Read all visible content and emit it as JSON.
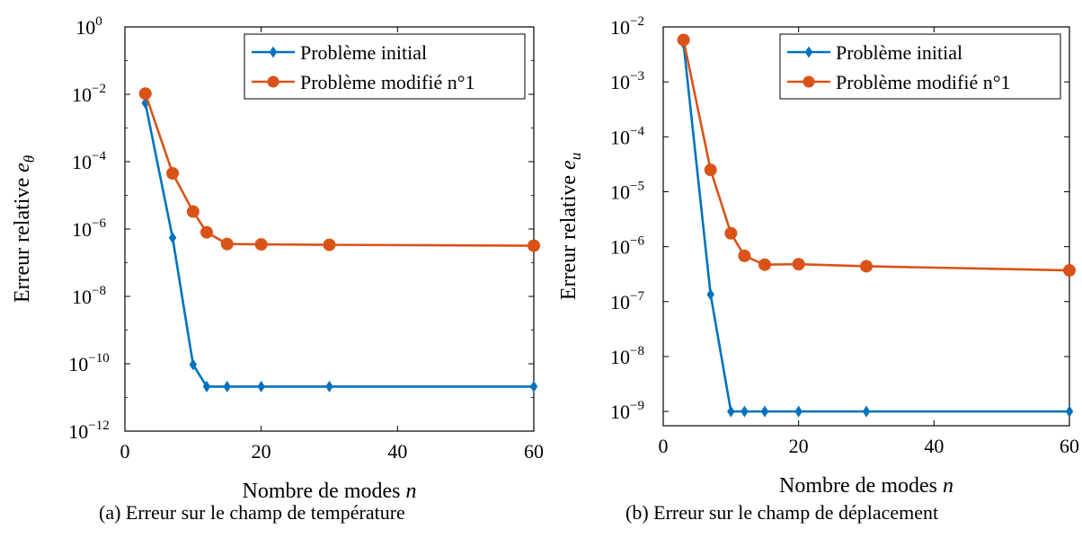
{
  "colors": {
    "blue": "#0072BD",
    "orange": "#D95319"
  },
  "panels": [
    {
      "caption": "(a) Erreur sur le champ de température",
      "chart_data": {
        "type": "line",
        "xlabel": "Nombre de modes n",
        "ylabel": "Erreur relative e_θ",
        "xlim": [
          0,
          60
        ],
        "ylim": [
          1e-12,
          1
        ],
        "yscale": "log",
        "xticks": [
          0,
          20,
          40,
          60
        ],
        "yticks": [
          {
            "base": "10",
            "exp": "0"
          },
          {
            "base": "10",
            "exp": "−2"
          },
          {
            "base": "10",
            "exp": "−4"
          },
          {
            "base": "10",
            "exp": "−6"
          },
          {
            "base": "10",
            "exp": "−8"
          },
          {
            "base": "10",
            "exp": "−10"
          },
          {
            "base": "10",
            "exp": "−12"
          }
        ],
        "legend_position": "top-right",
        "series": [
          {
            "name": "Problème initial",
            "marker": "diamond",
            "color": "#0072BD",
            "x": [
              3,
              7,
              10,
              12,
              15,
              20,
              30,
              60
            ],
            "y": [
              0.0055,
              5.5e-07,
              9.5e-11,
              2.1e-11,
              2.1e-11,
              2.1e-11,
              2.1e-11,
              2.1e-11
            ]
          },
          {
            "name": "Problème modifié n°1",
            "marker": "circle",
            "color": "#D95319",
            "x": [
              3,
              7,
              10,
              12,
              15,
              20,
              30,
              60
            ],
            "y": [
              0.0105,
              4.5e-05,
              3.3e-06,
              8e-07,
              3.6e-07,
              3.5e-07,
              3.4e-07,
              3.2e-07
            ]
          }
        ]
      }
    },
    {
      "caption": "(b) Erreur sur le champ de déplacement",
      "chart_data": {
        "type": "line",
        "xlabel": "Nombre de modes n",
        "ylabel": "Erreur relative e_u",
        "xlim": [
          0,
          60
        ],
        "ylim": [
          5.5e-10,
          0.01
        ],
        "yscale": "log",
        "xticks": [
          0,
          20,
          40,
          60
        ],
        "yticks": [
          {
            "base": "10",
            "exp": "−2"
          },
          {
            "base": "10",
            "exp": "−3"
          },
          {
            "base": "10",
            "exp": "−4"
          },
          {
            "base": "10",
            "exp": "−5"
          },
          {
            "base": "10",
            "exp": "−6"
          },
          {
            "base": "10",
            "exp": "−7"
          },
          {
            "base": "10",
            "exp": "−8"
          },
          {
            "base": "10",
            "exp": "−9"
          }
        ],
        "legend_position": "top-right",
        "series": [
          {
            "name": "Problème initial",
            "marker": "diamond",
            "color": "#0072BD",
            "x": [
              3,
              7,
              10,
              12,
              15,
              20,
              30,
              60
            ],
            "y": [
              0.005,
              1.35e-07,
              1e-09,
              1e-09,
              1e-09,
              1e-09,
              1e-09,
              1e-09
            ]
          },
          {
            "name": "Problème modifié n°1",
            "marker": "circle",
            "color": "#D95319",
            "x": [
              3,
              7,
              10,
              12,
              15,
              20,
              30,
              60
            ],
            "y": [
              0.0058,
              2.5e-05,
              1.75e-06,
              6.8e-07,
              4.7e-07,
              4.8e-07,
              4.4e-07,
              3.7e-07
            ]
          }
        ]
      }
    }
  ]
}
